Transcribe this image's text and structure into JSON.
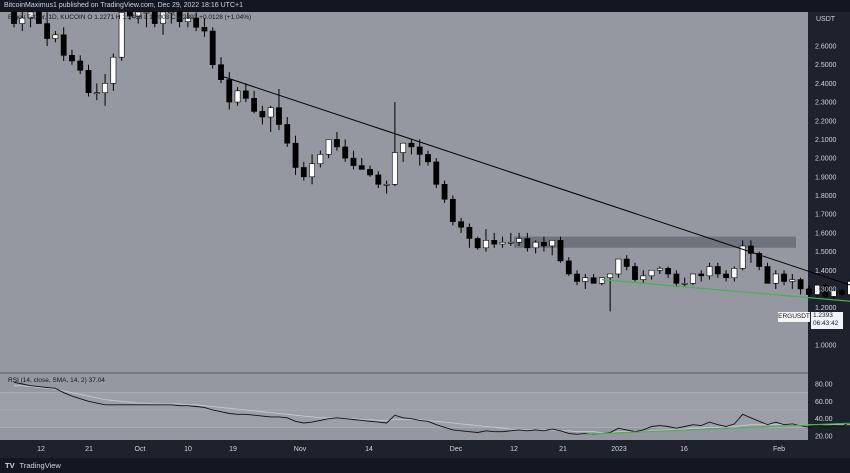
{
  "header": {
    "publish_line": "BitcoinMaximus1 published on TradingView.com, Dec 29, 2022 18:16 UTC+1"
  },
  "legend": {
    "symbol": "Ergo / Tether, 1D, KUCOIN",
    "ohlc": "O 1.2271  H 1.2468  L 1.2003  C 1.2393  +0.0128 (+1.04%)"
  },
  "rsi_legend": {
    "label": "RSI (14, close, SMA, 14, 2)",
    "value": "37.04"
  },
  "price_axis": {
    "currency": "USDT",
    "labels": [
      "2.6000",
      "2.5000",
      "2.4000",
      "2.3000",
      "2.2000",
      "2.1000",
      "2.0000",
      "1.9000",
      "1.8000",
      "1.7000",
      "1.6000",
      "1.5000",
      "1.4000",
      "1.3000",
      "1.2000",
      "1.1000",
      "1.0000"
    ]
  },
  "rsi_axis": {
    "labels": [
      "80.00",
      "60.00",
      "40.00",
      "20.00"
    ]
  },
  "time_axis": {
    "labels": [
      "12",
      "21",
      "Oct",
      "10",
      "19",
      "Nov",
      "14",
      "Dec",
      "12",
      "21",
      "2023",
      "16",
      "Feb"
    ]
  },
  "price_tag": {
    "symbol": "ERGUSDT",
    "price": "1.2393",
    "countdown": "06:43:42"
  },
  "footer": {
    "brand": "TradingView",
    "logo": "TV"
  },
  "colors": {
    "background": "#9598a1",
    "candle_up": "#ffffff",
    "candle_down": "#000000",
    "trendline": "#000000",
    "support_line": "#4caf50",
    "resistance_zone": "#555a66"
  },
  "chart_data": [
    {
      "type": "candlestick",
      "ylim": [
        1.0,
        2.75
      ],
      "x": [
        "09-16",
        "09-17",
        "09-18",
        "09-19",
        "09-20",
        "09-21",
        "09-22",
        "09-23",
        "09-24",
        "09-25",
        "09-26",
        "09-27",
        "09-28",
        "09-29",
        "09-30",
        "10-01",
        "10-02",
        "10-03",
        "10-04",
        "10-05",
        "10-06",
        "10-07",
        "10-08",
        "10-09",
        "10-10",
        "10-11",
        "10-12",
        "10-13",
        "10-14",
        "10-15",
        "10-16",
        "10-17",
        "10-18",
        "10-19",
        "10-20",
        "10-21",
        "10-22",
        "10-23",
        "10-24",
        "10-25",
        "10-26",
        "10-27",
        "10-28",
        "10-29",
        "10-30",
        "10-31",
        "11-01",
        "11-02",
        "11-03",
        "11-04",
        "11-05",
        "11-06",
        "11-07",
        "11-08",
        "11-09",
        "11-10",
        "11-11",
        "11-12",
        "11-13",
        "11-14",
        "11-15",
        "11-16",
        "11-17",
        "11-18",
        "11-19",
        "11-20",
        "11-21",
        "11-22",
        "11-23",
        "11-24",
        "11-25",
        "11-26",
        "11-27",
        "11-28",
        "11-29",
        "11-30",
        "12-01",
        "12-02",
        "12-03",
        "12-04",
        "12-05",
        "12-06",
        "12-07",
        "12-08",
        "12-09",
        "12-10",
        "12-11",
        "12-12",
        "12-13",
        "12-14",
        "12-15",
        "12-16",
        "12-17",
        "12-18",
        "12-19",
        "12-20",
        "12-21",
        "12-22",
        "12-23",
        "12-24",
        "12-25",
        "12-26",
        "12-27",
        "12-28",
        "12-29"
      ],
      "open": [
        2.8,
        2.72,
        2.75,
        2.8,
        2.72,
        2.64,
        2.66,
        2.55,
        2.52,
        2.47,
        2.35,
        2.35,
        2.4,
        2.54,
        2.82,
        2.76,
        2.8,
        2.9,
        2.72,
        2.8,
        2.82,
        2.73,
        2.75,
        2.7,
        2.68,
        2.5,
        2.42,
        2.3,
        2.36,
        2.32,
        2.25,
        2.22,
        2.27,
        2.18,
        2.08,
        1.95,
        1.9,
        1.97,
        2.02,
        2.1,
        2.06,
        2.0,
        1.96,
        1.94,
        1.91,
        1.86,
        1.86,
        2.03,
        2.08,
        2.06,
        2.02,
        1.98,
        1.86,
        1.78,
        1.66,
        1.63,
        1.57,
        1.52,
        1.56,
        1.54,
        1.55,
        1.55,
        1.57,
        1.52,
        1.55,
        1.53,
        1.56,
        1.45,
        1.38,
        1.34,
        1.36,
        1.33,
        1.36,
        1.38,
        1.46,
        1.42,
        1.35,
        1.37,
        1.4,
        1.41,
        1.38,
        1.33,
        1.33,
        1.38,
        1.37,
        1.42,
        1.38,
        1.36,
        1.41,
        1.53,
        1.49,
        1.42,
        1.33,
        1.38,
        1.34,
        1.35,
        1.3,
        1.27,
        1.32,
        1.26,
        1.29,
        1.27,
        1.34,
        1.27,
        1.23
      ],
      "high": [
        2.85,
        2.8,
        2.82,
        2.83,
        2.78,
        2.68,
        2.7,
        2.58,
        2.55,
        2.5,
        2.4,
        2.45,
        2.56,
        2.8,
        2.84,
        2.85,
        2.88,
        2.92,
        2.82,
        2.85,
        2.84,
        2.78,
        2.78,
        2.75,
        2.7,
        2.54,
        2.46,
        2.38,
        2.4,
        2.36,
        2.28,
        2.28,
        2.37,
        2.22,
        2.12,
        1.98,
        2.02,
        2.04,
        2.1,
        2.14,
        2.1,
        2.04,
        2.0,
        1.96,
        1.93,
        1.88,
        2.3,
        2.08,
        2.1,
        2.1,
        2.04,
        2.0,
        1.88,
        1.8,
        1.68,
        1.65,
        1.58,
        1.62,
        1.6,
        1.58,
        1.6,
        1.6,
        1.6,
        1.56,
        1.58,
        1.56,
        1.58,
        1.47,
        1.4,
        1.38,
        1.38,
        1.36,
        1.38,
        1.46,
        1.48,
        1.44,
        1.4,
        1.4,
        1.42,
        1.42,
        1.4,
        1.36,
        1.38,
        1.4,
        1.44,
        1.44,
        1.4,
        1.42,
        1.56,
        1.56,
        1.5,
        1.44,
        1.4,
        1.4,
        1.38,
        1.36,
        1.32,
        1.32,
        1.33,
        1.3,
        1.3,
        1.36,
        1.35,
        1.28,
        1.25
      ],
      "low": [
        2.7,
        2.68,
        2.7,
        2.72,
        2.6,
        2.62,
        2.52,
        2.5,
        2.45,
        2.33,
        2.31,
        2.28,
        2.36,
        2.52,
        2.74,
        2.72,
        2.7,
        2.7,
        2.66,
        2.72,
        2.7,
        2.7,
        2.68,
        2.65,
        2.48,
        2.4,
        2.26,
        2.28,
        2.3,
        2.24,
        2.18,
        2.14,
        2.15,
        2.06,
        1.91,
        1.88,
        1.86,
        1.95,
        2.0,
        2.04,
        1.98,
        1.94,
        1.94,
        1.9,
        1.84,
        1.81,
        1.85,
        1.98,
        2.02,
        1.96,
        1.96,
        1.84,
        1.76,
        1.64,
        1.6,
        1.52,
        1.51,
        1.5,
        1.52,
        1.52,
        1.53,
        1.53,
        1.5,
        1.49,
        1.5,
        1.48,
        1.44,
        1.37,
        1.32,
        1.3,
        1.34,
        1.32,
        1.18,
        1.36,
        1.4,
        1.34,
        1.33,
        1.35,
        1.38,
        1.36,
        1.31,
        1.31,
        1.32,
        1.34,
        1.35,
        1.36,
        1.34,
        1.34,
        1.4,
        1.44,
        1.4,
        1.33,
        1.3,
        1.32,
        1.3,
        1.27,
        1.25,
        1.25,
        1.25,
        1.24,
        1.26,
        1.26,
        1.26,
        1.16,
        1.2
      ],
      "close": [
        2.72,
        2.75,
        2.8,
        2.72,
        2.64,
        2.66,
        2.55,
        2.52,
        2.47,
        2.35,
        2.35,
        2.4,
        2.54,
        2.78,
        2.76,
        2.8,
        2.85,
        2.72,
        2.8,
        2.82,
        2.73,
        2.75,
        2.7,
        2.68,
        2.5,
        2.42,
        2.3,
        2.36,
        2.32,
        2.25,
        2.22,
        2.27,
        2.18,
        2.08,
        1.95,
        1.9,
        1.97,
        2.02,
        2.1,
        2.06,
        2.0,
        1.96,
        1.94,
        1.91,
        1.86,
        1.86,
        2.03,
        2.08,
        2.06,
        2.02,
        1.98,
        1.86,
        1.78,
        1.66,
        1.63,
        1.57,
        1.52,
        1.56,
        1.54,
        1.55,
        1.55,
        1.57,
        1.52,
        1.55,
        1.53,
        1.56,
        1.45,
        1.38,
        1.34,
        1.36,
        1.33,
        1.36,
        1.38,
        1.46,
        1.42,
        1.35,
        1.37,
        1.4,
        1.41,
        1.38,
        1.33,
        1.33,
        1.38,
        1.37,
        1.42,
        1.38,
        1.36,
        1.41,
        1.53,
        1.49,
        1.42,
        1.33,
        1.38,
        1.34,
        1.35,
        1.3,
        1.27,
        1.32,
        1.26,
        1.29,
        1.27,
        1.34,
        1.27,
        1.23,
        1.24
      ],
      "annotations": {
        "descending_trendline": [
          [
            "10-11",
            2.44
          ],
          [
            "12-31",
            1.24
          ]
        ],
        "resistance_zone": {
          "from": "11-16",
          "to": "12-31",
          "ymin": 1.52,
          "ymax": 1.58
        },
        "support_line": [
          [
            "11-26",
            1.35
          ],
          [
            "12-27",
            1.23
          ]
        ]
      }
    },
    {
      "type": "line",
      "ylim": [
        15,
        90
      ],
      "series": [
        {
          "values": [
            82,
            80,
            78,
            77,
            76,
            75,
            70,
            66,
            63,
            60,
            58,
            56,
            56,
            56,
            56,
            56,
            56,
            56,
            56,
            56,
            55,
            55,
            54,
            53,
            50,
            48,
            46,
            45,
            45,
            44,
            43,
            42,
            42,
            41,
            37,
            35,
            36,
            38,
            40,
            41,
            40,
            39,
            38,
            37,
            36,
            35,
            44,
            41,
            40,
            38,
            37,
            33,
            30,
            27,
            26,
            25,
            24,
            26,
            25,
            25,
            26,
            27,
            26,
            27,
            26,
            28,
            26,
            23,
            22,
            23,
            22,
            23,
            24,
            29,
            27,
            25,
            27,
            31,
            32,
            31,
            29,
            31,
            33,
            32,
            36,
            33,
            31,
            34,
            45,
            41,
            37,
            33,
            36,
            33,
            34,
            32,
            30,
            33,
            30,
            32,
            31,
            36,
            33,
            30,
            37
          ]
        },
        {
          "values": [
            78,
            78,
            77,
            76,
            75,
            74,
            72,
            70,
            68,
            66,
            64,
            62,
            61,
            60,
            59,
            58,
            58,
            57,
            57,
            57,
            57,
            56,
            56,
            55,
            54,
            53,
            52,
            51,
            50,
            49,
            48,
            47,
            46,
            45,
            44,
            43,
            42,
            41,
            41,
            41,
            40,
            40,
            39,
            39,
            38,
            38,
            39,
            39,
            39,
            39,
            38,
            37,
            36,
            35,
            34,
            33,
            32,
            31,
            30,
            29,
            28,
            28,
            27,
            27,
            27,
            27,
            26,
            26,
            25,
            25,
            25,
            24,
            24,
            25,
            25,
            25,
            25,
            26,
            27,
            27,
            28,
            28,
            29,
            29,
            30,
            30,
            31,
            31,
            32,
            33,
            33,
            33,
            33,
            33,
            33,
            33,
            33,
            33,
            33,
            33,
            33,
            33,
            33,
            33,
            34
          ]
        }
      ],
      "annotations": {
        "bullish_divergence_line": [
          [
            "11-24",
            22
          ],
          [
            "12-29",
            36
          ]
        ],
        "levels": [
          70,
          50,
          30
        ]
      }
    }
  ]
}
